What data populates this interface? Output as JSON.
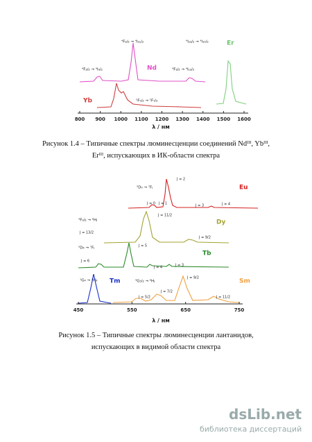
{
  "figures": [
    {
      "labels": [
        "⁴F₃/₂ → ⁴I₁₁/₂",
        "⁴F₃/₂ → ⁴I₉/₂",
        "Nd",
        "⁴I₁₃/₂ → ⁴I₁₅/₂",
        "Er",
        "⁴F₃/₂ → ⁴I₁₃/₂",
        "Yb",
        "²F₅/₂ → ²F₇/₂"
      ],
      "xticks": [
        800,
        900,
        1000,
        1100,
        1200,
        1300,
        1400,
        1500,
        1600
      ],
      "x_label": "λ / нм",
      "caption": "Рисунок 1.4 – Типичные спектры люминесценции соединений Ndᴵᴵᴵ, Ybᴵᴵᴵ, Erᴵᴵᴵ, испускающих в ИК-области спектра"
    },
    {
      "labels": [
        "⁵D₀ → ⁷Fⱼ",
        "J = 2",
        "Eu",
        "J = 0",
        "J = 1",
        "J = 3",
        "J = 4",
        "⁴F₉/₂ → ⁶Hⱼ",
        "J = 11/2",
        "Dy",
        "J = 13/2",
        "J = 9/2",
        "⁵D₄ → ⁷Fⱼ",
        "J = 5",
        "Tb",
        "J = 6",
        "J = 4",
        "J = 3",
        "¹G₄ → ³H₆",
        "Tm",
        "⁴G₅/₂ → ⁶Hⱼ",
        "J = 9/2",
        "Sm",
        "J = 5/2",
        "J = 7/2",
        "J = 11/2"
      ],
      "xticks": [
        450,
        550,
        650,
        750
      ],
      "x_label": "λ / нм",
      "caption": "Рисунок 1.5 – Типичные спектры люминесценции лантанидов, испускающих в видимой области спектра"
    }
  ],
  "watermark": {
    "logo": "dsLib.net",
    "subtitle": "библиотека диссертаций"
  }
}
